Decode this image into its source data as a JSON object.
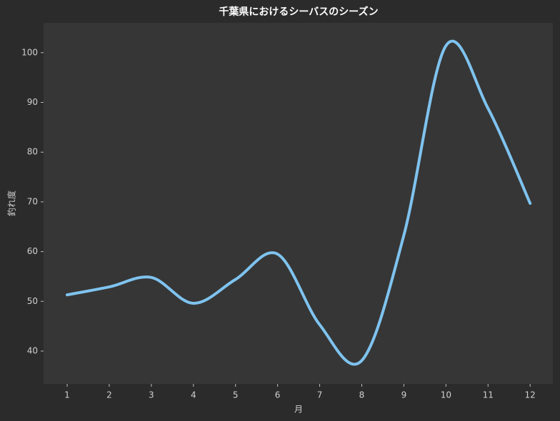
{
  "chart_data": {
    "type": "line",
    "title": "千葉県におけるシーバスのシーズン",
    "x_label": "月",
    "y_label": "釣れ度",
    "x": [
      1,
      2,
      3,
      4,
      5,
      6,
      7,
      8,
      9,
      10,
      11,
      12
    ],
    "series": [
      {
        "name": "釣れ度",
        "color": "#7fc3ef",
        "values": [
          51.3,
          52.9,
          54.8,
          49.6,
          54.4,
          59.5,
          45.3,
          38.1,
          63.3,
          101.4,
          88.8,
          69.7
        ]
      }
    ],
    "xlim": [
      0.44,
      12.54
    ],
    "xticks": [
      1,
      2,
      3,
      4,
      5,
      6,
      7,
      8,
      9,
      10,
      11,
      12
    ],
    "ylim": [
      33.4,
      106
    ],
    "yticks": [
      40,
      50,
      60,
      70,
      80,
      90,
      100
    ],
    "grid": false,
    "legend": false
  }
}
